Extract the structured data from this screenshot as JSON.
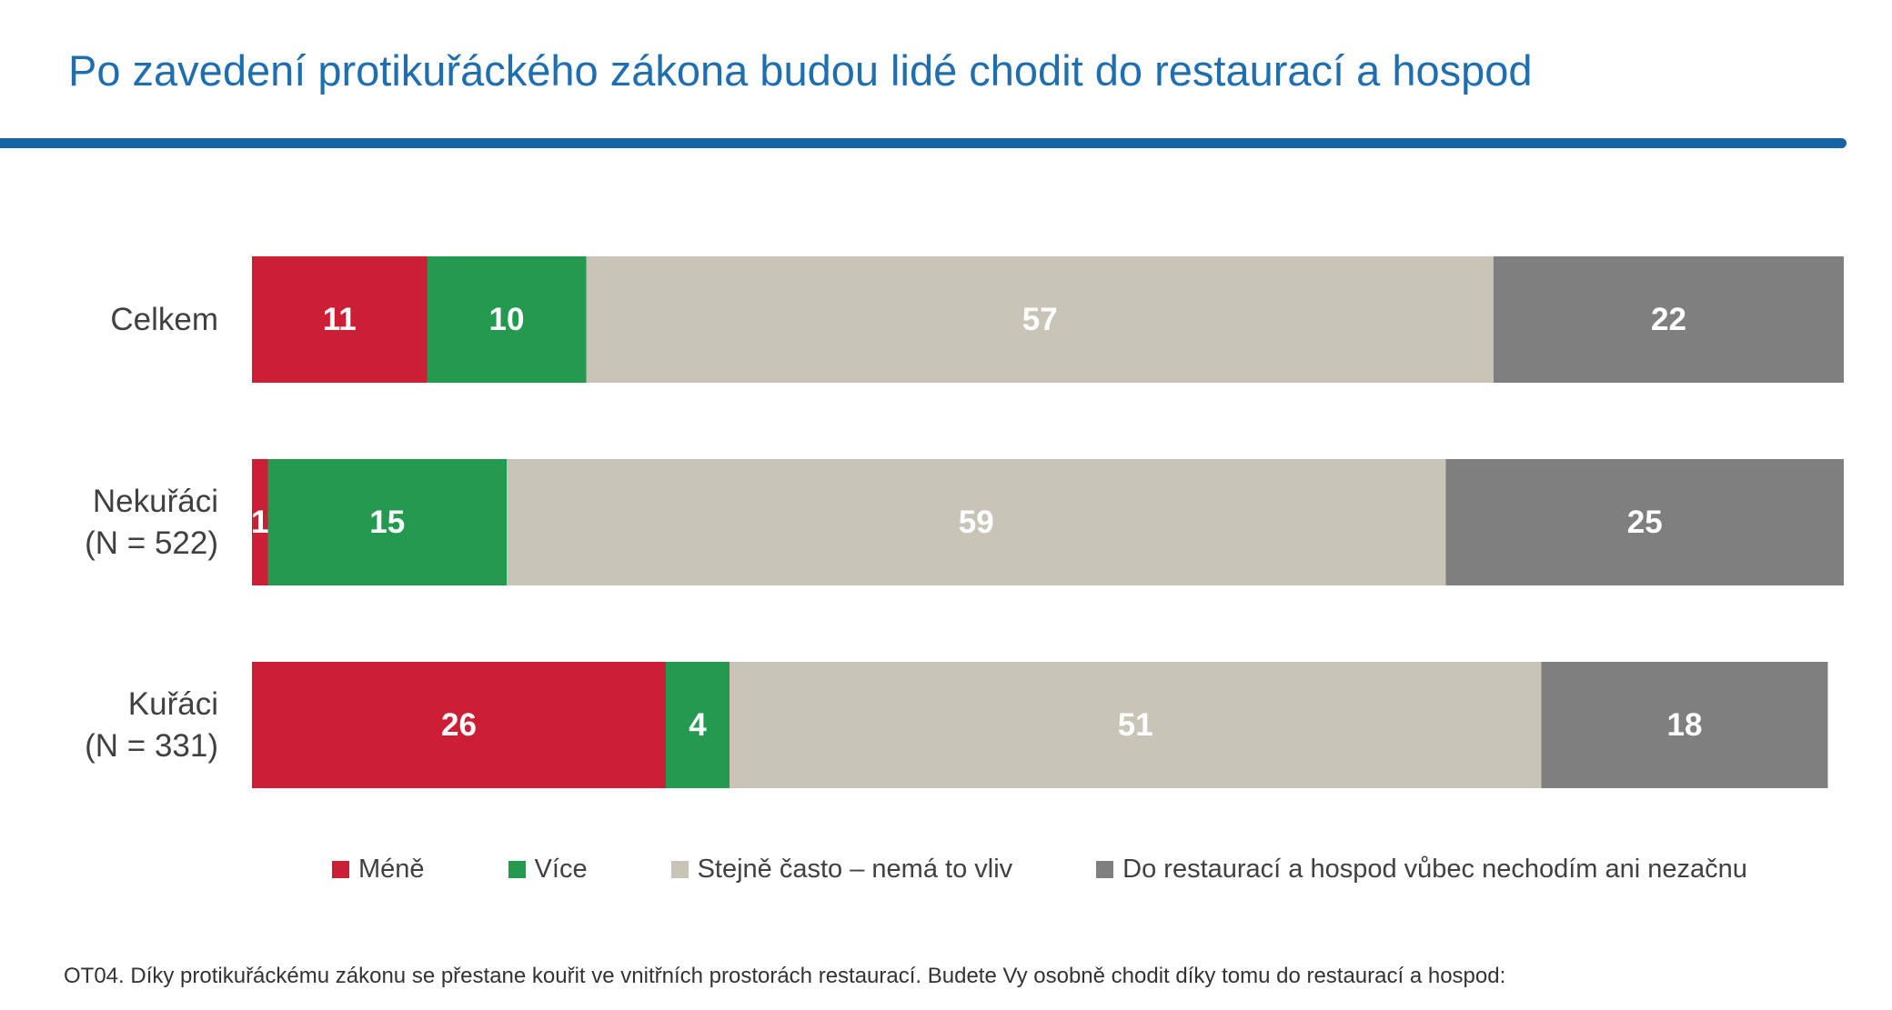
{
  "title": "Po zavedení protikuřáckého zákona budou lidé chodit do restaurací a hospod",
  "footnote": "OT04. Díky protikuřáckému zákonu se přestane kouřit ve vnitřních prostorách restaurací. Budete Vy osobně chodit díky tomu do restaurací a hospod:",
  "colors": {
    "title": "#1f6fb0",
    "rule": "#1565a5",
    "mene": "#cc1f36",
    "vice": "#249a50",
    "stejne": "#c8c4b8",
    "nechodim": "#7f7f7f"
  },
  "chart_data": {
    "type": "bar",
    "orientation": "horizontal",
    "stacked": true,
    "title": "Po zavedení protikuřáckého zákona budou lidé chodit do restaurací a hospod",
    "categories": [
      [
        "Celkem"
      ],
      [
        "Nekuřáci",
        "(N = 522)"
      ],
      [
        "Kuřáci",
        "(N = 331)"
      ]
    ],
    "series": [
      {
        "name": "Méně",
        "color": "#cc1f36",
        "values": [
          11,
          1,
          26
        ]
      },
      {
        "name": "Více",
        "color": "#249a50",
        "values": [
          10,
          15,
          4
        ]
      },
      {
        "name": "Stejně často – nemá to vliv",
        "color": "#c8c4b8",
        "values": [
          57,
          59,
          51
        ]
      },
      {
        "name": "Do restaurací a hospod vůbec nechodím ani nezačnu",
        "color": "#7f7f7f",
        "values": [
          22,
          25,
          18
        ]
      }
    ],
    "xlim": [
      0,
      100
    ],
    "grid": false,
    "legend_position": "bottom",
    "value_labels": true
  }
}
